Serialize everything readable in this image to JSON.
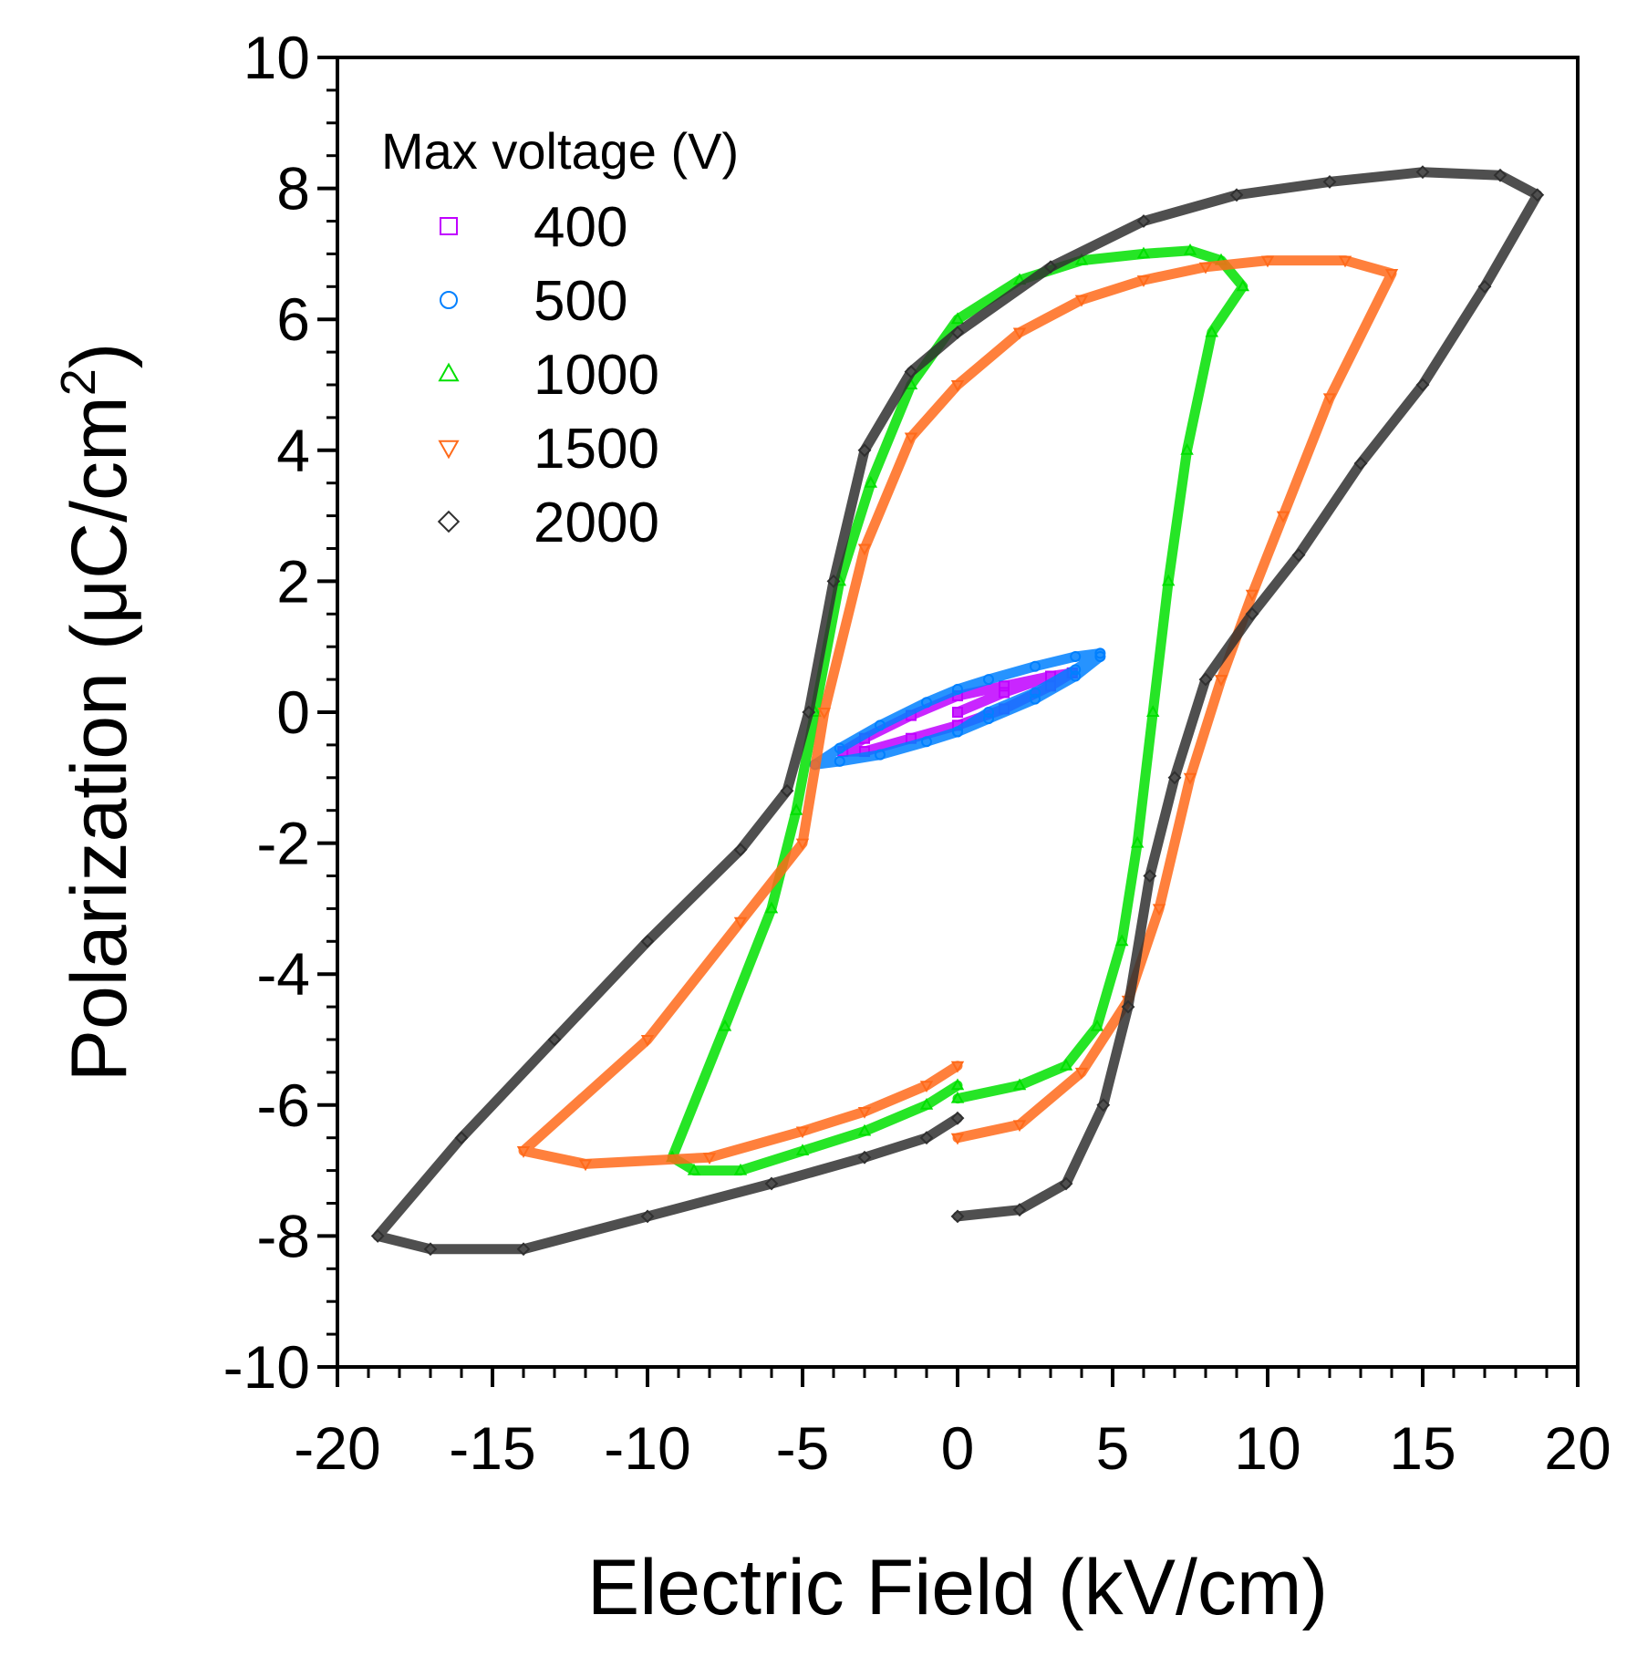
{
  "chart_data": {
    "type": "scatter",
    "title": "",
    "xlabel": "Electric Field (kV/cm)",
    "ylabel_main": "Polarization (μC/cm",
    "ylabel_sup": "2",
    "ylabel_close": ")",
    "xlim": [
      -20,
      20
    ],
    "ylim": [
      -10,
      10
    ],
    "xticks": [
      -20,
      -15,
      -10,
      -5,
      0,
      5,
      10,
      15,
      20
    ],
    "yticks": [
      -10,
      -8,
      -6,
      -4,
      -2,
      0,
      2,
      4,
      6,
      8,
      10
    ],
    "grid": false,
    "legend": {
      "title": "Max voltage (V)",
      "position": "top-left"
    },
    "series": [
      {
        "name": "400",
        "marker": "square",
        "color": "#c000ff",
        "points": [
          [
            0,
            0
          ],
          [
            1.5,
            0.3
          ],
          [
            3,
            0.55
          ],
          [
            3.7,
            0.6
          ],
          [
            3,
            0.55
          ],
          [
            1.5,
            0.4
          ],
          [
            0,
            0.25
          ],
          [
            -1.5,
            -0.05
          ],
          [
            -3,
            -0.4
          ],
          [
            -3.7,
            -0.6
          ],
          [
            -3,
            -0.6
          ],
          [
            -1.5,
            -0.4
          ],
          [
            0,
            -0.2
          ],
          [
            1.5,
            0.05
          ],
          [
            3,
            0.4
          ],
          [
            3.7,
            0.6
          ]
        ]
      },
      {
        "name": "500",
        "marker": "circle",
        "color": "#0080ff",
        "points": [
          [
            0,
            -0.3
          ],
          [
            1,
            0
          ],
          [
            2.5,
            0.3
          ],
          [
            3.8,
            0.65
          ],
          [
            4.6,
            0.9
          ],
          [
            3.8,
            0.85
          ],
          [
            2.5,
            0.7
          ],
          [
            1,
            0.5
          ],
          [
            0,
            0.35
          ],
          [
            -1,
            0.15
          ],
          [
            -2.5,
            -0.2
          ],
          [
            -3.8,
            -0.55
          ],
          [
            -4.6,
            -0.8
          ],
          [
            -3.8,
            -0.75
          ],
          [
            -2.5,
            -0.65
          ],
          [
            -1,
            -0.45
          ],
          [
            0,
            -0.3
          ],
          [
            1,
            -0.1
          ],
          [
            2.5,
            0.2
          ],
          [
            3.8,
            0.55
          ],
          [
            4.6,
            0.85
          ]
        ]
      },
      {
        "name": "1000",
        "marker": "triangle-up",
        "color": "#00e000",
        "points": [
          [
            0,
            -5.9
          ],
          [
            2,
            -5.7
          ],
          [
            3.5,
            -5.4
          ],
          [
            4.5,
            -4.8
          ],
          [
            5.3,
            -3.5
          ],
          [
            5.8,
            -2
          ],
          [
            6.3,
            0
          ],
          [
            6.8,
            2
          ],
          [
            7.4,
            4
          ],
          [
            8.2,
            5.8
          ],
          [
            9.2,
            6.5
          ],
          [
            8.5,
            6.9
          ],
          [
            7.5,
            7.05
          ],
          [
            6,
            7
          ],
          [
            4,
            6.9
          ],
          [
            2,
            6.6
          ],
          [
            0,
            6
          ],
          [
            -1.5,
            5
          ],
          [
            -2.8,
            3.5
          ],
          [
            -3.8,
            2
          ],
          [
            -4.6,
            0
          ],
          [
            -5.2,
            -1.5
          ],
          [
            -6,
            -3
          ],
          [
            -7.5,
            -4.8
          ],
          [
            -9.2,
            -6.8
          ],
          [
            -8.5,
            -7
          ],
          [
            -7,
            -7
          ],
          [
            -5,
            -6.7
          ],
          [
            -3,
            -6.4
          ],
          [
            -1,
            -6
          ],
          [
            0,
            -5.7
          ]
        ]
      },
      {
        "name": "1500",
        "marker": "triangle-down",
        "color": "#ff6a1a",
        "points": [
          [
            0,
            -6.5
          ],
          [
            2,
            -6.3
          ],
          [
            4,
            -5.5
          ],
          [
            5.5,
            -4.4
          ],
          [
            6.5,
            -3
          ],
          [
            7.5,
            -1
          ],
          [
            8.5,
            0.5
          ],
          [
            9.5,
            1.8
          ],
          [
            10.5,
            3
          ],
          [
            12,
            4.8
          ],
          [
            14,
            6.7
          ],
          [
            12.5,
            6.9
          ],
          [
            10,
            6.9
          ],
          [
            8,
            6.8
          ],
          [
            6,
            6.6
          ],
          [
            4,
            6.3
          ],
          [
            2,
            5.8
          ],
          [
            0,
            5
          ],
          [
            -1.5,
            4.2
          ],
          [
            -3,
            2.5
          ],
          [
            -4.3,
            0
          ],
          [
            -5,
            -2
          ],
          [
            -7,
            -3.2
          ],
          [
            -10,
            -5
          ],
          [
            -14,
            -6.7
          ],
          [
            -12,
            -6.9
          ],
          [
            -8,
            -6.8
          ],
          [
            -5,
            -6.4
          ],
          [
            -3,
            -6.1
          ],
          [
            -1,
            -5.7
          ],
          [
            0,
            -5.4
          ]
        ]
      },
      {
        "name": "2000",
        "marker": "diamond",
        "color": "#303030",
        "points": [
          [
            0,
            -7.7
          ],
          [
            2,
            -7.6
          ],
          [
            3.5,
            -7.2
          ],
          [
            4.7,
            -6
          ],
          [
            5.5,
            -4.5
          ],
          [
            6.2,
            -2.5
          ],
          [
            7,
            -1
          ],
          [
            8,
            0.5
          ],
          [
            9.5,
            1.5
          ],
          [
            11,
            2.4
          ],
          [
            13,
            3.8
          ],
          [
            15,
            5
          ],
          [
            17,
            6.5
          ],
          [
            18.7,
            7.9
          ],
          [
            17.5,
            8.2
          ],
          [
            15,
            8.25
          ],
          [
            12,
            8.1
          ],
          [
            9,
            7.9
          ],
          [
            6,
            7.5
          ],
          [
            3,
            6.8
          ],
          [
            0,
            5.8
          ],
          [
            -1.5,
            5.2
          ],
          [
            -3,
            4
          ],
          [
            -4,
            2
          ],
          [
            -4.8,
            0
          ],
          [
            -5.5,
            -1.2
          ],
          [
            -7,
            -2.1
          ],
          [
            -10,
            -3.5
          ],
          [
            -13,
            -5
          ],
          [
            -16,
            -6.5
          ],
          [
            -18.7,
            -8
          ],
          [
            -17,
            -8.2
          ],
          [
            -14,
            -8.2
          ],
          [
            -10,
            -7.7
          ],
          [
            -6,
            -7.2
          ],
          [
            -3,
            -6.8
          ],
          [
            -1,
            -6.5
          ],
          [
            0,
            -6.2
          ]
        ]
      }
    ]
  }
}
